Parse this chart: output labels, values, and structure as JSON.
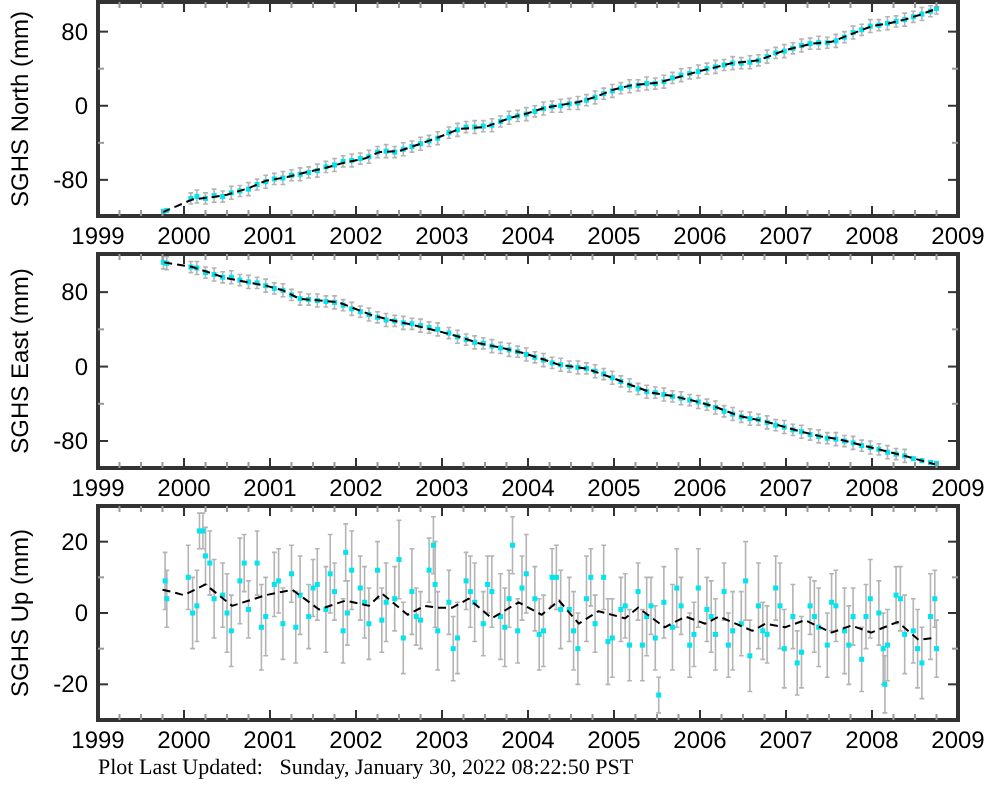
{
  "chart_data": [
    {
      "type": "scatter",
      "ylabel": "SGHS North (mm)",
      "xlim": [
        1999,
        2009
      ],
      "ylim": [
        -119,
        112
      ],
      "xticks": [
        1999,
        {
          "value": 1999.25,
          "label": null
        },
        {
          "value": 1999.5,
          "label": null
        },
        {
          "value": 1999.75,
          "label": null
        },
        2000,
        {
          "value": 2000.25,
          "label": null
        },
        {
          "value": 2000.5,
          "label": null
        },
        {
          "value": 2000.75,
          "label": null
        },
        2001,
        {
          "value": 2001.25,
          "label": null
        },
        {
          "value": 2001.5,
          "label": null
        },
        {
          "value": 2001.75,
          "label": null
        },
        2002,
        {
          "value": 2002.25,
          "label": null
        },
        {
          "value": 2002.5,
          "label": null
        },
        {
          "value": 2002.75,
          "label": null
        },
        2003,
        {
          "value": 2003.25,
          "label": null
        },
        {
          "value": 2003.5,
          "label": null
        },
        {
          "value": 2003.75,
          "label": null
        },
        2004,
        {
          "value": 2004.25,
          "label": null
        },
        {
          "value": 2004.5,
          "label": null
        },
        {
          "value": 2004.75,
          "label": null
        },
        2005,
        {
          "value": 2005.25,
          "label": null
        },
        {
          "value": 2005.5,
          "label": null
        },
        {
          "value": 2005.75,
          "label": null
        },
        2006,
        {
          "value": 2006.25,
          "label": null
        },
        {
          "value": 2006.5,
          "label": null
        },
        {
          "value": 2006.75,
          "label": null
        },
        2007,
        {
          "value": 2007.25,
          "label": null
        },
        {
          "value": 2007.5,
          "label": null
        },
        {
          "value": 2007.75,
          "label": null
        },
        2008,
        {
          "value": 2008.25,
          "label": null
        },
        {
          "value": 2008.5,
          "label": null
        },
        {
          "value": 2008.75,
          "label": null
        },
        2009
      ],
      "yticks": [
        -80,
        {
          "value": -40,
          "label": null
        },
        0,
        {
          "value": 40,
          "label": null
        },
        80
      ],
      "series": [
        {
          "color": "#00e5ee",
          "marker": "square",
          "x": [
            1999.76,
            1999.8,
            2000.08,
            2000.15,
            2000.25,
            2000.35,
            2000.45,
            2000.55,
            2000.65,
            2000.75,
            2000.85,
            2000.95,
            2001.05,
            2001.15,
            2001.25,
            2001.35,
            2001.45,
            2001.55,
            2001.65,
            2001.75,
            2001.85,
            2001.95,
            2002.05,
            2002.15,
            2002.25,
            2002.35,
            2002.45,
            2002.55,
            2002.65,
            2002.75,
            2002.85,
            2002.95,
            2003.08,
            2003.18,
            2003.28,
            2003.38,
            2003.48,
            2003.58,
            2003.68,
            2003.78,
            2003.88,
            2003.98,
            2004.08,
            2004.18,
            2004.28,
            2004.38,
            2004.48,
            2004.58,
            2004.68,
            2004.78,
            2004.88,
            2004.98,
            2005.08,
            2005.18,
            2005.28,
            2005.38,
            2005.48,
            2005.58,
            2005.68,
            2005.78,
            2005.88,
            2005.98,
            2006.08,
            2006.18,
            2006.28,
            2006.38,
            2006.48,
            2006.58,
            2006.68,
            2006.78,
            2006.88,
            2006.98,
            2007.08,
            2007.18,
            2007.28,
            2007.38,
            2007.48,
            2007.58,
            2007.68,
            2007.78,
            2007.88,
            2007.98,
            2008.08,
            2008.18,
            2008.28,
            2008.38,
            2008.48,
            2008.58,
            2008.68,
            2008.75
          ],
          "values": [
            -114,
            -113,
            -100,
            -98,
            -100,
            -97,
            -98,
            -94,
            -92,
            -90,
            -85,
            -82,
            -79,
            -78,
            -75,
            -74,
            -72,
            -70,
            -66,
            -64,
            -60,
            -59,
            -57,
            -55,
            -50,
            -49,
            -50,
            -47,
            -44,
            -41,
            -38,
            -35,
            -29,
            -26,
            -23,
            -23,
            -22,
            -21,
            -17,
            -13,
            -11,
            -9,
            -6,
            -3,
            -1,
            0,
            2,
            3,
            6,
            9,
            13,
            16,
            19,
            21,
            22,
            24,
            24,
            26,
            30,
            33,
            35,
            37,
            40,
            42,
            44,
            46,
            46,
            47,
            49,
            53,
            57,
            59,
            62,
            65,
            67,
            68,
            68,
            70,
            74,
            79,
            82,
            86,
            87,
            89,
            91,
            93,
            96,
            99,
            102,
            105
          ],
          "errors": [
            null,
            null,
            6,
            7,
            6,
            7,
            6,
            7,
            6,
            7,
            6,
            7,
            6,
            7,
            6,
            7,
            6,
            7,
            6,
            7,
            6,
            7,
            6,
            7,
            6,
            7,
            6,
            7,
            6,
            7,
            6,
            7,
            6,
            7,
            6,
            7,
            6,
            7,
            6,
            7,
            6,
            7,
            6,
            7,
            6,
            7,
            6,
            7,
            6,
            7,
            6,
            7,
            6,
            7,
            6,
            7,
            6,
            7,
            6,
            7,
            6,
            7,
            6,
            7,
            6,
            7,
            6,
            7,
            6,
            7,
            6,
            7,
            6,
            7,
            6,
            7,
            6,
            7,
            6,
            7,
            6,
            7,
            6,
            7,
            6,
            7,
            6,
            7,
            6,
            6
          ]
        },
        {
          "type": "line",
          "color": "#000000",
          "line_style": "dashed",
          "x": [
            1999.75,
            2000.1,
            2000.3,
            2000.5,
            2000.75,
            2000.95,
            2001.2,
            2001.41,
            2001.65,
            2001.88,
            2002.1,
            2002.27,
            2002.5,
            2002.75,
            2002.96,
            2003.2,
            2003.5,
            2003.8,
            2004.0,
            2004.2,
            2004.59,
            2004.8,
            2004.98,
            2005.2,
            2005.52,
            2005.75,
            2005.98,
            2006.2,
            2006.37,
            2006.68,
            2006.99,
            2007.3,
            2007.53,
            2007.75,
            2008.0,
            2008.2,
            2008.38,
            2008.55,
            2008.73
          ],
          "values": [
            -115,
            -101,
            -99,
            -96,
            -89,
            -81,
            -77,
            -72,
            -67,
            -61,
            -57,
            -50,
            -49,
            -41,
            -34,
            -25,
            -23,
            -13,
            -8,
            -2,
            4,
            10,
            17,
            22,
            25,
            31,
            37,
            42,
            46,
            49,
            60,
            67,
            69,
            77,
            86,
            89,
            93,
            98,
            104
          ]
        }
      ]
    },
    {
      "type": "scatter",
      "ylabel": "SGHS East (mm)",
      "xlim": [
        1999,
        2009
      ],
      "ylim": [
        -109,
        121
      ],
      "xticks": [
        1999,
        {
          "value": 1999.25,
          "label": null
        },
        {
          "value": 1999.5,
          "label": null
        },
        {
          "value": 1999.75,
          "label": null
        },
        2000,
        {
          "value": 2000.25,
          "label": null
        },
        {
          "value": 2000.5,
          "label": null
        },
        {
          "value": 2000.75,
          "label": null
        },
        2001,
        {
          "value": 2001.25,
          "label": null
        },
        {
          "value": 2001.5,
          "label": null
        },
        {
          "value": 2001.75,
          "label": null
        },
        2002,
        {
          "value": 2002.25,
          "label": null
        },
        {
          "value": 2002.5,
          "label": null
        },
        {
          "value": 2002.75,
          "label": null
        },
        2003,
        {
          "value": 2003.25,
          "label": null
        },
        {
          "value": 2003.5,
          "label": null
        },
        {
          "value": 2003.75,
          "label": null
        },
        2004,
        {
          "value": 2004.25,
          "label": null
        },
        {
          "value": 2004.5,
          "label": null
        },
        {
          "value": 2004.75,
          "label": null
        },
        2005,
        {
          "value": 2005.25,
          "label": null
        },
        {
          "value": 2005.5,
          "label": null
        },
        {
          "value": 2005.75,
          "label": null
        },
        2006,
        {
          "value": 2006.25,
          "label": null
        },
        {
          "value": 2006.5,
          "label": null
        },
        {
          "value": 2006.75,
          "label": null
        },
        2007,
        {
          "value": 2007.25,
          "label": null
        },
        {
          "value": 2007.5,
          "label": null
        },
        {
          "value": 2007.75,
          "label": null
        },
        2008,
        {
          "value": 2008.25,
          "label": null
        },
        {
          "value": 2008.5,
          "label": null
        },
        {
          "value": 2008.75,
          "label": null
        },
        2009
      ],
      "yticks": [
        -80,
        {
          "value": -40,
          "label": null
        },
        0,
        {
          "value": 40,
          "label": null
        },
        80
      ],
      "series": [
        {
          "color": "#00e5ee",
          "marker": "square",
          "x": [
            1999.76,
            1999.8,
            2000.08,
            2000.15,
            2000.25,
            2000.35,
            2000.45,
            2000.55,
            2000.65,
            2000.75,
            2000.85,
            2000.95,
            2001.05,
            2001.15,
            2001.25,
            2001.35,
            2001.45,
            2001.55,
            2001.65,
            2001.75,
            2001.85,
            2001.95,
            2002.05,
            2002.15,
            2002.25,
            2002.35,
            2002.45,
            2002.55,
            2002.65,
            2002.75,
            2002.85,
            2002.95,
            2003.08,
            2003.18,
            2003.28,
            2003.38,
            2003.48,
            2003.58,
            2003.68,
            2003.78,
            2003.88,
            2003.98,
            2004.08,
            2004.18,
            2004.28,
            2004.38,
            2004.48,
            2004.58,
            2004.68,
            2004.78,
            2004.88,
            2004.98,
            2005.08,
            2005.18,
            2005.28,
            2005.38,
            2005.48,
            2005.58,
            2005.68,
            2005.78,
            2005.88,
            2005.98,
            2006.08,
            2006.18,
            2006.28,
            2006.38,
            2006.48,
            2006.58,
            2006.68,
            2006.78,
            2006.88,
            2006.98,
            2007.08,
            2007.18,
            2007.28,
            2007.38,
            2007.48,
            2007.58,
            2007.68,
            2007.78,
            2007.88,
            2007.98,
            2008.08,
            2008.18,
            2008.28,
            2008.38,
            2008.48,
            2008.58,
            2008.68,
            2008.75
          ],
          "values": [
            112,
            111,
            107,
            106,
            101,
            99,
            96,
            96,
            93,
            91,
            90,
            87,
            84,
            82,
            77,
            73,
            72,
            71,
            70,
            69,
            66,
            62,
            59,
            56,
            53,
            50,
            49,
            47,
            46,
            44,
            42,
            40,
            36,
            32,
            29,
            26,
            25,
            22,
            20,
            18,
            16,
            13,
            10,
            7,
            4,
            2,
            0,
            -1,
            -2,
            -5,
            -8,
            -12,
            -16,
            -20,
            -24,
            -27,
            -28,
            -30,
            -32,
            -34,
            -36,
            -38,
            -41,
            -44,
            -48,
            -51,
            -54,
            -56,
            -57,
            -60,
            -63,
            -65,
            -68,
            -70,
            -73,
            -75,
            -77,
            -78,
            -80,
            -82,
            -85,
            -87,
            -89,
            -92,
            -94,
            -96,
            -99,
            -101,
            -103,
            -104
          ],
          "errors": [
            7,
            7,
            6,
            7,
            6,
            7,
            6,
            7,
            6,
            7,
            6,
            7,
            6,
            7,
            6,
            7,
            6,
            7,
            6,
            7,
            6,
            7,
            6,
            7,
            6,
            7,
            6,
            7,
            6,
            7,
            6,
            7,
            6,
            7,
            6,
            7,
            6,
            7,
            6,
            7,
            6,
            7,
            6,
            7,
            6,
            7,
            6,
            7,
            6,
            7,
            6,
            7,
            6,
            7,
            6,
            7,
            6,
            7,
            6,
            7,
            6,
            7,
            6,
            7,
            6,
            7,
            6,
            7,
            6,
            7,
            6,
            7,
            6,
            7,
            6,
            7,
            6,
            7,
            6,
            7,
            6,
            7,
            6,
            7,
            6,
            7,
            null,
            null,
            null,
            null
          ]
        },
        {
          "type": "line",
          "color": "#000000",
          "line_style": "dashed",
          "x": [
            1999.77,
            2000.1,
            2000.49,
            2000.95,
            2001.15,
            2001.34,
            2001.8,
            2002.19,
            2002.4,
            2002.65,
            2002.96,
            2003.2,
            2003.43,
            2003.7,
            2003.97,
            2004.2,
            2004.36,
            2004.67,
            2004.98,
            2005.2,
            2005.44,
            2005.7,
            2005.98,
            2006.2,
            2006.45,
            2006.76,
            2007.14,
            2007.4,
            2007.61,
            2007.99,
            2008.38,
            2008.73
          ],
          "values": [
            112,
            107,
            95,
            87,
            82,
            73,
            69,
            55,
            50,
            45,
            38,
            32,
            25,
            20,
            14,
            7,
            2,
            -2,
            -12,
            -20,
            -28,
            -32,
            -38,
            -44,
            -53,
            -59,
            -69,
            -75,
            -78,
            -87,
            -96,
            -105
          ]
        }
      ]
    },
    {
      "type": "scatter",
      "ylabel": "SGHS Up (mm)",
      "xlim": [
        1999,
        2009
      ],
      "ylim": [
        -30,
        30
      ],
      "xticks": [
        1999,
        {
          "value": 1999.25,
          "label": null
        },
        {
          "value": 1999.5,
          "label": null
        },
        {
          "value": 1999.75,
          "label": null
        },
        2000,
        {
          "value": 2000.25,
          "label": null
        },
        {
          "value": 2000.5,
          "label": null
        },
        {
          "value": 2000.75,
          "label": null
        },
        2001,
        {
          "value": 2001.25,
          "label": null
        },
        {
          "value": 2001.5,
          "label": null
        },
        {
          "value": 2001.75,
          "label": null
        },
        2002,
        {
          "value": 2002.25,
          "label": null
        },
        {
          "value": 2002.5,
          "label": null
        },
        {
          "value": 2002.75,
          "label": null
        },
        2003,
        {
          "value": 2003.25,
          "label": null
        },
        {
          "value": 2003.5,
          "label": null
        },
        {
          "value": 2003.75,
          "label": null
        },
        2004,
        {
          "value": 2004.25,
          "label": null
        },
        {
          "value": 2004.5,
          "label": null
        },
        {
          "value": 2004.75,
          "label": null
        },
        2005,
        {
          "value": 2005.25,
          "label": null
        },
        {
          "value": 2005.5,
          "label": null
        },
        {
          "value": 2005.75,
          "label": null
        },
        2006,
        {
          "value": 2006.25,
          "label": null
        },
        {
          "value": 2006.5,
          "label": null
        },
        {
          "value": 2006.75,
          "label": null
        },
        2007,
        {
          "value": 2007.25,
          "label": null
        },
        {
          "value": 2007.5,
          "label": null
        },
        {
          "value": 2007.75,
          "label": null
        },
        2008,
        {
          "value": 2008.25,
          "label": null
        },
        {
          "value": 2008.5,
          "label": null
        },
        {
          "value": 2008.75,
          "label": null
        },
        2009
      ],
      "yticks": [
        -20,
        {
          "value": -10,
          "label": null
        },
        0,
        {
          "value": 10,
          "label": null
        },
        20
      ],
      "annotations": [
        "Plot Last Updated:   Sunday, January 30, 2022 08:22:50 PST"
      ],
      "series": [
        {
          "color": "#00e5ee",
          "marker": "square",
          "x": [
            1999.78,
            1999.8,
            2000.05,
            2000.1,
            2000.15,
            2000.18,
            2000.22,
            2000.25,
            2000.3,
            2000.35,
            2000.45,
            2000.5,
            2000.55,
            2000.65,
            2000.7,
            2000.75,
            2000.85,
            2000.9,
            2000.95,
            2001.05,
            2001.1,
            2001.15,
            2001.25,
            2001.3,
            2001.35,
            2001.45,
            2001.5,
            2001.55,
            2001.65,
            2001.7,
            2001.75,
            2001.85,
            2001.88,
            2001.9,
            2001.95,
            2002.05,
            2002.1,
            2002.15,
            2002.25,
            2002.3,
            2002.35,
            2002.45,
            2002.5,
            2002.55,
            2002.65,
            2002.7,
            2002.75,
            2002.85,
            2002.9,
            2002.92,
            2002.95,
            2003.08,
            2003.13,
            2003.18,
            2003.28,
            2003.33,
            2003.38,
            2003.48,
            2003.53,
            2003.58,
            2003.68,
            2003.73,
            2003.78,
            2003.82,
            2003.88,
            2003.93,
            2003.98,
            2004.08,
            2004.13,
            2004.18,
            2004.28,
            2004.33,
            2004.38,
            2004.48,
            2004.53,
            2004.58,
            2004.68,
            2004.73,
            2004.78,
            2004.88,
            2004.93,
            2004.98,
            2005.08,
            2005.13,
            2005.18,
            2005.28,
            2005.33,
            2005.38,
            2005.43,
            2005.48,
            2005.52,
            2005.58,
            2005.68,
            2005.73,
            2005.78,
            2005.88,
            2005.93,
            2005.98,
            2006.08,
            2006.13,
            2006.18,
            2006.28,
            2006.33,
            2006.38,
            2006.48,
            2006.53,
            2006.58,
            2006.68,
            2006.73,
            2006.78,
            2006.88,
            2006.93,
            2006.98,
            2007.08,
            2007.13,
            2007.18,
            2007.28,
            2007.33,
            2007.38,
            2007.48,
            2007.53,
            2007.58,
            2007.68,
            2007.73,
            2007.78,
            2007.88,
            2007.93,
            2007.98,
            2008.08,
            2008.13,
            2008.15,
            2008.18,
            2008.28,
            2008.33,
            2008.38,
            2008.48,
            2008.53,
            2008.58,
            2008.68,
            2008.73,
            2008.75
          ],
          "values": [
            9,
            4,
            10,
            0,
            2,
            23,
            23,
            16,
            14,
            4,
            5,
            0,
            -5,
            9,
            14,
            1,
            14,
            -4,
            -1,
            8,
            9,
            -3,
            11,
            -4,
            5,
            -1,
            7,
            8,
            1,
            11,
            6,
            -5,
            17,
            0,
            12,
            7,
            3,
            -3,
            12,
            -2,
            3,
            4,
            15,
            -7,
            6,
            -1,
            -2,
            12,
            19,
            8,
            -5,
            3,
            -10,
            -7,
            9,
            6,
            3,
            -3,
            8,
            6,
            -1,
            -4,
            4,
            19,
            -5,
            7,
            11,
            4,
            -6,
            -5,
            10,
            10,
            1,
            1,
            -5,
            -10,
            4,
            10,
            -3,
            10,
            -8,
            -7,
            1,
            2,
            -9,
            6,
            -9,
            -1,
            2,
            -7,
            -23,
            3,
            -4,
            7,
            2,
            -9,
            -6,
            7,
            1,
            -1,
            -6,
            6,
            -9,
            -5,
            -3,
            9,
            -12,
            2,
            -5,
            -6,
            7,
            2,
            -10,
            -1,
            -14,
            -11,
            2,
            -1,
            -4,
            -9,
            3,
            2,
            -5,
            -9,
            -1,
            -13,
            -1,
            4,
            0,
            -10,
            -20,
            -9,
            5,
            4,
            -6,
            -5,
            -10,
            -14,
            -1,
            4,
            -10
          ],
          "errors": [
            8,
            8,
            9,
            10,
            10,
            5,
            5,
            8,
            9,
            11,
            9,
            11,
            10,
            12,
            8,
            8,
            9,
            12,
            11,
            9,
            9,
            10,
            8,
            10,
            11,
            9,
            8,
            10,
            12,
            11,
            8,
            9,
            8,
            9,
            11,
            9,
            10,
            10,
            8,
            9,
            11,
            9,
            11,
            10,
            12,
            8,
            8,
            9,
            8,
            12,
            11,
            9,
            9,
            10,
            8,
            10,
            11,
            9,
            8,
            10,
            12,
            11,
            8,
            8,
            9,
            9,
            11,
            9,
            10,
            10,
            8,
            9,
            11,
            9,
            11,
            10,
            12,
            8,
            8,
            9,
            12,
            11,
            9,
            9,
            10,
            8,
            10,
            11,
            8,
            9,
            5,
            10,
            12,
            11,
            8,
            9,
            9,
            11,
            9,
            10,
            10,
            8,
            9,
            11,
            9,
            11,
            10,
            12,
            8,
            8,
            9,
            12,
            11,
            9,
            9,
            10,
            8,
            10,
            11,
            9,
            8,
            10,
            12,
            11,
            8,
            9,
            9,
            11,
            9,
            10,
            8,
            10,
            8,
            9,
            11,
            9,
            11,
            10,
            12,
            8,
            8
          ]
        },
        {
          "type": "line",
          "color": "#000000",
          "line_style": "dashed",
          "x": [
            1999.75,
            1999.85,
            2000.0,
            2000.25,
            2000.56,
            2000.95,
            2001.26,
            2001.57,
            2001.88,
            2002.15,
            2002.3,
            2002.6,
            2002.8,
            2002.96,
            2003.12,
            2003.31,
            2003.58,
            2003.89,
            2004.16,
            2004.36,
            2004.59,
            2004.82,
            2005.13,
            2005.28,
            2005.59,
            2005.83,
            2006.06,
            2006.22,
            2006.61,
            2006.76,
            2006.99,
            2007.22,
            2007.53,
            2007.76,
            2007.99,
            2008.3,
            2008.54,
            2008.72
          ],
          "values": [
            6.5,
            6,
            5,
            8,
            2,
            5,
            6.5,
            1,
            3.5,
            2,
            5.5,
            -0.5,
            2,
            1.5,
            1.5,
            4,
            -1.5,
            3,
            -0.5,
            3.5,
            -3,
            0.5,
            -1.5,
            1.5,
            -4,
            -1,
            -3,
            -1,
            -5,
            -3,
            -4,
            -2,
            -5.5,
            -3.5,
            -5.5,
            -2.5,
            -7.5,
            -7
          ]
        }
      ]
    }
  ]
}
